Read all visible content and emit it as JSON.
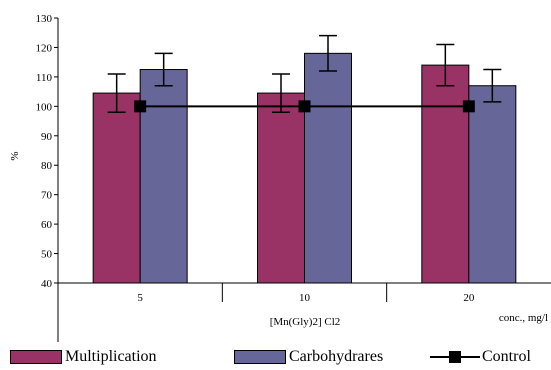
{
  "chart_data": {
    "type": "bar",
    "categories": [
      "5",
      "10",
      "20"
    ],
    "group_label": "[Mn(Gly)2] Cl2",
    "xlabel": "conc., mg/l",
    "ylabel": "%",
    "ylim": [
      40,
      130
    ],
    "yticks": [
      "40",
      "50",
      "60",
      "70",
      "80",
      "90",
      "100",
      "110",
      "120",
      "130"
    ],
    "grid": false,
    "legend_position": "bottom",
    "series": [
      {
        "name": "Multiplication",
        "kind": "bar",
        "color": "#993366",
        "values": [
          104.5,
          104.5,
          114
        ],
        "errors": [
          6.5,
          6.5,
          7
        ]
      },
      {
        "name": "Carbohydrares",
        "kind": "bar",
        "color": "#666699",
        "values": [
          112.5,
          118,
          107
        ],
        "errors": [
          5.5,
          6,
          5.5
        ]
      },
      {
        "name": "Control",
        "kind": "line",
        "marker": "square",
        "color": "#000000",
        "values": [
          100,
          100,
          100
        ]
      }
    ]
  }
}
